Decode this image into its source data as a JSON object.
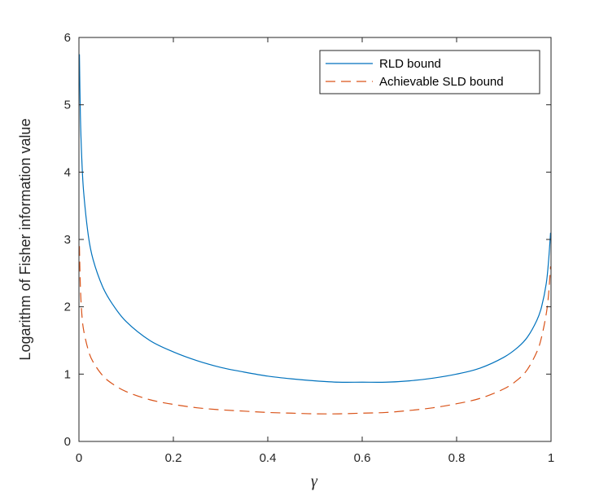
{
  "chart_data": {
    "type": "line",
    "title": "",
    "xlabel": "γ",
    "ylabel": "Logarithm of Fisher information value",
    "xlim": [
      0,
      1
    ],
    "ylim": [
      0,
      6
    ],
    "xticks": [
      "0",
      "0.2",
      "0.4",
      "0.6",
      "0.8",
      "1"
    ],
    "yticks": [
      "0",
      "1",
      "2",
      "3",
      "4",
      "5",
      "6"
    ],
    "grid": false,
    "legend_position": "top-right",
    "series": [
      {
        "name": "RLD bound",
        "color": "#0072BD",
        "style": "solid",
        "x": [
          0.001,
          0.003,
          0.006,
          0.01,
          0.02,
          0.03,
          0.05,
          0.07,
          0.1,
          0.15,
          0.2,
          0.25,
          0.3,
          0.35,
          0.4,
          0.45,
          0.5,
          0.55,
          0.6,
          0.65,
          0.7,
          0.75,
          0.8,
          0.85,
          0.9,
          0.93,
          0.95,
          0.97,
          0.98,
          0.99,
          0.995,
          0.999
        ],
        "y": [
          5.75,
          4.85,
          4.2,
          3.7,
          3.05,
          2.7,
          2.3,
          2.05,
          1.78,
          1.5,
          1.33,
          1.2,
          1.1,
          1.03,
          0.97,
          0.93,
          0.9,
          0.88,
          0.88,
          0.88,
          0.9,
          0.94,
          1.0,
          1.09,
          1.25,
          1.4,
          1.55,
          1.8,
          2.0,
          2.35,
          2.7,
          3.1
        ]
      },
      {
        "name": "Achievable SLD bound",
        "color": "#D95319",
        "style": "dashed",
        "x": [
          0.001,
          0.003,
          0.006,
          0.01,
          0.02,
          0.03,
          0.05,
          0.07,
          0.1,
          0.15,
          0.2,
          0.25,
          0.3,
          0.35,
          0.4,
          0.45,
          0.5,
          0.55,
          0.6,
          0.65,
          0.7,
          0.75,
          0.8,
          0.85,
          0.9,
          0.93,
          0.95,
          0.97,
          0.98,
          0.99,
          0.995,
          0.999
        ],
        "y": [
          2.9,
          2.3,
          1.9,
          1.65,
          1.35,
          1.18,
          0.98,
          0.86,
          0.74,
          0.62,
          0.55,
          0.5,
          0.47,
          0.45,
          0.43,
          0.42,
          0.41,
          0.41,
          0.42,
          0.43,
          0.46,
          0.5,
          0.56,
          0.64,
          0.78,
          0.92,
          1.07,
          1.33,
          1.55,
          1.9,
          2.2,
          2.6
        ]
      }
    ]
  }
}
